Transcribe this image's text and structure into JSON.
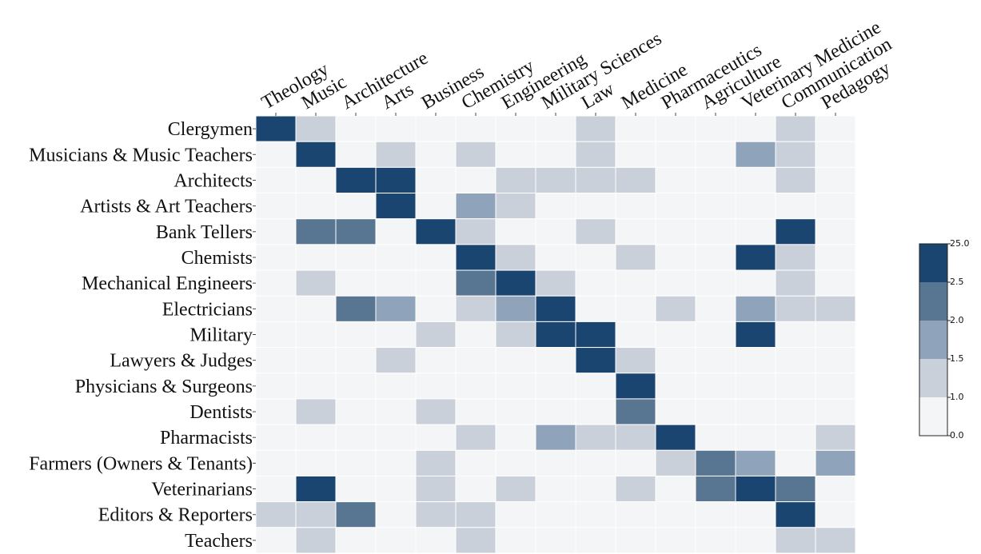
{
  "chart_data": {
    "type": "heatmap",
    "x_categories": [
      "Theology",
      "Music",
      "Architecture",
      "Arts",
      "Business",
      "Chemistry",
      "Engineering",
      "Military Sciences",
      "Law",
      "Medicine",
      "Pharmaceutics",
      "Agriculture",
      "Veterinary Medicine",
      "Communication",
      "Pedagogy"
    ],
    "y_categories": [
      "Clergymen",
      "Musicians & Music Teachers",
      "Architects",
      "Artists & Art Teachers",
      "Bank Tellers",
      "Chemists",
      "Mechanical Engineers",
      "Electricians",
      "Military",
      "Lawyers & Judges",
      "Physicians & Surgeons",
      "Dentists",
      "Pharmacists",
      "Farmers (Owners & Tenants)",
      "Veterinarians",
      "Editors & Reporters",
      "Teachers"
    ],
    "values": [
      [
        3.0,
        1.2,
        0.5,
        0.5,
        0.5,
        0.5,
        0.5,
        0.5,
        1.2,
        0.5,
        0.5,
        0.5,
        0.5,
        1.2,
        0.5
      ],
      [
        0.5,
        3.0,
        0.5,
        1.2,
        0.5,
        1.2,
        0.5,
        0.5,
        1.2,
        0.5,
        0.5,
        0.5,
        1.7,
        1.2,
        0.5
      ],
      [
        0.5,
        0.5,
        3.0,
        3.0,
        0.5,
        0.5,
        1.2,
        1.2,
        1.2,
        1.2,
        0.5,
        0.5,
        0.5,
        1.2,
        0.5
      ],
      [
        0.5,
        0.5,
        0.5,
        3.0,
        0.5,
        1.7,
        1.2,
        0.5,
        0.5,
        0.5,
        0.5,
        0.5,
        0.5,
        0.5,
        0.5
      ],
      [
        0.5,
        2.2,
        2.2,
        0.5,
        3.0,
        1.2,
        0.5,
        0.5,
        1.2,
        0.5,
        0.5,
        0.5,
        0.5,
        3.0,
        0.5
      ],
      [
        0.5,
        0.5,
        0.5,
        0.5,
        0.5,
        3.0,
        1.2,
        0.5,
        0.5,
        1.2,
        0.5,
        0.5,
        3.0,
        1.2,
        0.5
      ],
      [
        0.5,
        1.2,
        0.5,
        0.5,
        0.5,
        2.2,
        3.0,
        1.2,
        0.5,
        0.5,
        0.5,
        0.5,
        0.5,
        1.2,
        0.5
      ],
      [
        0.5,
        0.5,
        2.2,
        1.7,
        0.5,
        1.2,
        1.7,
        3.0,
        0.5,
        0.5,
        1.2,
        0.5,
        1.7,
        1.2,
        1.2
      ],
      [
        0.5,
        0.5,
        0.5,
        0.5,
        1.2,
        0.5,
        1.2,
        3.0,
        3.0,
        0.5,
        0.5,
        0.5,
        3.0,
        0.5,
        0.5
      ],
      [
        0.5,
        0.5,
        0.5,
        1.2,
        0.5,
        0.5,
        0.5,
        0.5,
        3.0,
        1.2,
        0.5,
        0.5,
        0.5,
        0.5,
        0.5
      ],
      [
        0.5,
        0.5,
        0.5,
        0.5,
        0.5,
        0.5,
        0.5,
        0.5,
        0.5,
        3.0,
        0.5,
        0.5,
        0.5,
        0.5,
        0.5
      ],
      [
        0.5,
        1.2,
        0.5,
        0.5,
        1.2,
        0.5,
        0.5,
        0.5,
        0.5,
        2.2,
        0.5,
        0.5,
        0.5,
        0.5,
        0.5
      ],
      [
        0.5,
        0.5,
        0.5,
        0.5,
        0.5,
        1.2,
        0.5,
        1.7,
        1.2,
        1.2,
        3.0,
        0.5,
        0.5,
        0.5,
        1.2
      ],
      [
        0.5,
        0.5,
        0.5,
        0.5,
        1.2,
        0.5,
        0.5,
        0.5,
        0.5,
        0.5,
        1.2,
        2.2,
        1.7,
        0.5,
        1.7
      ],
      [
        0.5,
        3.0,
        0.5,
        0.5,
        1.2,
        0.5,
        1.2,
        0.5,
        0.5,
        1.2,
        0.5,
        2.2,
        3.0,
        2.2,
        0.5
      ],
      [
        1.2,
        1.2,
        2.2,
        0.5,
        1.2,
        1.2,
        0.5,
        0.5,
        0.5,
        0.5,
        0.5,
        0.5,
        0.5,
        3.0,
        0.5
      ],
      [
        0.5,
        1.2,
        0.5,
        0.5,
        0.5,
        1.2,
        0.5,
        0.5,
        0.5,
        0.5,
        0.5,
        0.5,
        0.5,
        1.2,
        1.2
      ]
    ],
    "colorbar_ticks": [
      {
        "value": 0,
        "label": "0.0"
      },
      {
        "value": 1,
        "label": "1.0"
      },
      {
        "value": 1.5,
        "label": "1.5"
      },
      {
        "value": 2,
        "label": "2.0"
      },
      {
        "value": 2.5,
        "label": "2.5"
      },
      {
        "value": 25,
        "label": "25.0"
      }
    ],
    "bin_colors": [
      "#f4f5f7",
      "#c9d0da",
      "#8fa3ba",
      "#587592",
      "#1b4571"
    ]
  }
}
